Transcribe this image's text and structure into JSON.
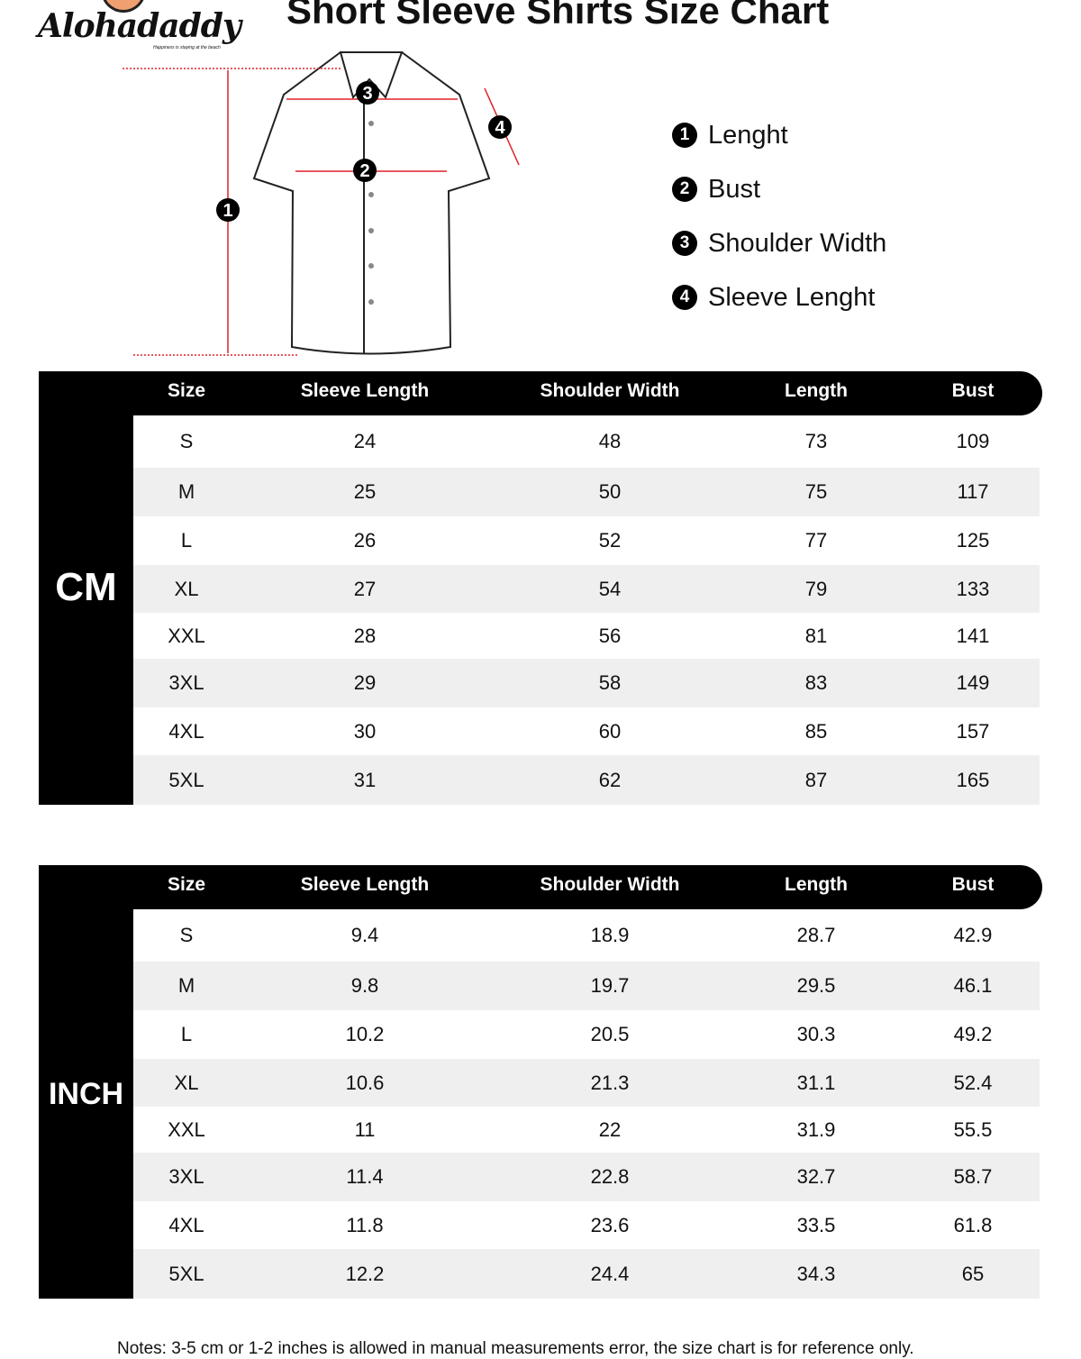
{
  "brand": {
    "name": "Alohadaddy",
    "tagline": "Happiness is staying at the beach"
  },
  "title": "Short Sleeve Shirts Size Chart",
  "legend": [
    {
      "num": "1",
      "label": "Lenght"
    },
    {
      "num": "2",
      "label": "Bust"
    },
    {
      "num": "3",
      "label": "Shoulder Width"
    },
    {
      "num": "4",
      "label": "Sleeve Lenght"
    }
  ],
  "colors": {
    "header": "#000000",
    "alt_row": "#efefef",
    "measure_line": "#e0202a"
  },
  "columns": [
    "Size",
    "Sleeve Length",
    "Shoulder Width",
    "Length",
    "Bust"
  ],
  "tables": [
    {
      "unit": "CM",
      "rows": [
        [
          "S",
          "24",
          "48",
          "73",
          "109"
        ],
        [
          "M",
          "25",
          "50",
          "75",
          "117"
        ],
        [
          "L",
          "26",
          "52",
          "77",
          "125"
        ],
        [
          "XL",
          "27",
          "54",
          "79",
          "133"
        ],
        [
          "XXL",
          "28",
          "56",
          "81",
          "141"
        ],
        [
          "3XL",
          "29",
          "58",
          "83",
          "149"
        ],
        [
          "4XL",
          "30",
          "60",
          "85",
          "157"
        ],
        [
          "5XL",
          "31",
          "62",
          "87",
          "165"
        ]
      ]
    },
    {
      "unit": "INCH",
      "rows": [
        [
          "S",
          "9.4",
          "18.9",
          "28.7",
          "42.9"
        ],
        [
          "M",
          "9.8",
          "19.7",
          "29.5",
          "46.1"
        ],
        [
          "L",
          "10.2",
          "20.5",
          "30.3",
          "49.2"
        ],
        [
          "XL",
          "10.6",
          "21.3",
          "31.1",
          "52.4"
        ],
        [
          "XXL",
          "11",
          "22",
          "31.9",
          "55.5"
        ],
        [
          "3XL",
          "11.4",
          "22.8",
          "32.7",
          "58.7"
        ],
        [
          "4XL",
          "11.8",
          "23.6",
          "33.5",
          "61.8"
        ],
        [
          "5XL",
          "12.2",
          "24.4",
          "34.3",
          "65"
        ]
      ]
    }
  ],
  "notes": "Notes: 3-5 cm or 1-2 inches is allowed in manual measurements error, the size chart is for reference only."
}
